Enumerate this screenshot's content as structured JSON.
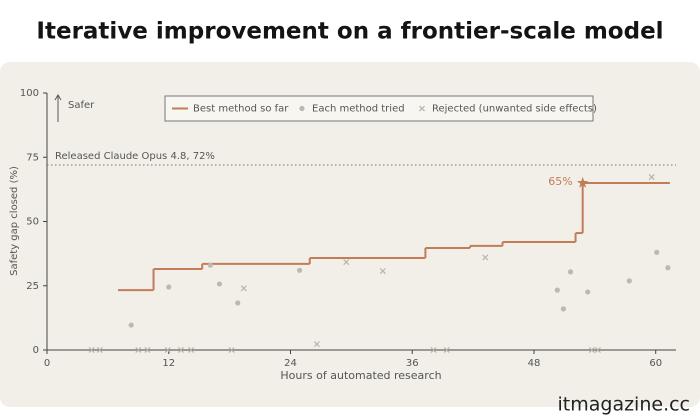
{
  "chart_data": {
    "type": "step",
    "title": "Iterative improvement on a frontier-scale model",
    "xlabel": "Hours of automated research",
    "ylabel": "Safety gap closed (%)",
    "direction_label": "Safer",
    "xlim": [
      0,
      62
    ],
    "xticks": [
      0,
      12,
      24,
      36,
      48,
      60
    ],
    "ylim": [
      0,
      100
    ],
    "yticks": [
      0,
      25,
      50,
      75,
      100
    ],
    "reference_line": {
      "y": 72,
      "label": "Released Claude Opus 4.8, 72%"
    },
    "highlight": {
      "x": 52.8,
      "y": 65,
      "label": "65%"
    },
    "series": [
      {
        "name": "Best method so far",
        "marker": "step",
        "color": "#c27c57",
        "x": [
          7.0,
          10.5,
          15.3,
          25.9,
          37.3,
          41.7,
          44.9,
          52.1,
          52.8,
          61.4
        ],
        "values": [
          23.3,
          31.5,
          33.5,
          35.8,
          39.7,
          40.5,
          42,
          45.5,
          65,
          65
        ]
      },
      {
        "name": "Each method tried",
        "marker": "dot",
        "color": "#bdb9ae",
        "x": [
          8.3,
          12.0,
          16.1,
          17.0,
          18.8,
          24.9,
          50.3,
          50.9,
          51.6,
          53.3,
          57.4,
          60.1,
          61.2
        ],
        "values": [
          9.7,
          24.5,
          33,
          25.7,
          18.3,
          31,
          23.3,
          16,
          30.4,
          22.6,
          26.9,
          38,
          32
        ]
      },
      {
        "name": "Rejected (unwanted side effects)",
        "marker": "cross",
        "color": "#b8b4aa",
        "x": [
          4.4,
          5.2,
          9.0,
          9.9,
          11.9,
          13.2,
          14.2,
          18.2,
          38.1,
          39.4,
          53.7,
          54.3,
          19.4,
          26.6,
          29.5,
          33.1,
          43.2,
          59.6
        ],
        "values": [
          0,
          0,
          0,
          0,
          0,
          0,
          0,
          0,
          0,
          0,
          0,
          0,
          24,
          2.3,
          34.2,
          30.7,
          36,
          67.3
        ]
      }
    ]
  },
  "watermark": "itmagazine.cc"
}
